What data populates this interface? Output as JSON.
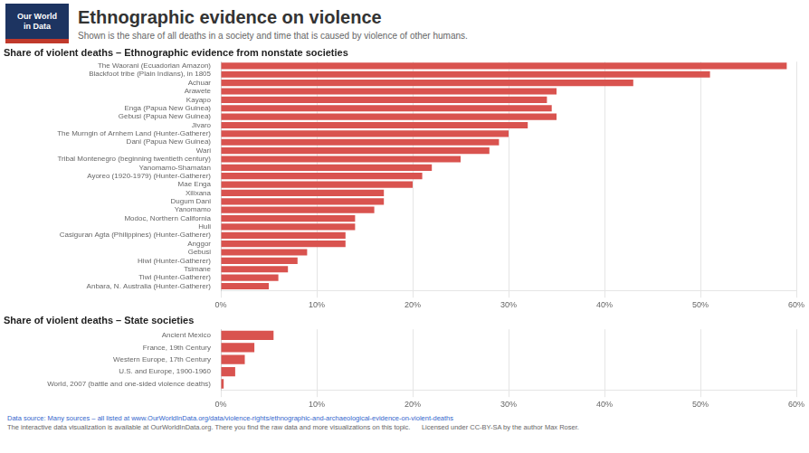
{
  "title": "Ethnographic evidence on violence",
  "subtitle": "Shown is the share of all deaths in a society and time that is caused by violence of other humans.",
  "annotations": [
    "Our World\nin Data",
    "Data source: Many sources – all listed at www.OurWorldInData.org/data/violence-rights/ethnographic-and-archaeological-evidence-on-violent-deaths",
    "The interactive data visualization is available at OurWorldInData.org. There you find the raw data and more visualizations on this topic.      Licensed under CC-BY-SA by the author Max Roser."
  ],
  "chart_data": [
    {
      "type": "bar",
      "orientation": "horizontal",
      "title": "Share of violent deaths – Ethnographic evidence from nonstate societies",
      "categories": [
        "The Waorani (Ecuadorian Amazon)",
        "Blackfoot tribe (Plain Indians), in 1805",
        "Achuar",
        "Arawete",
        "Kayapo",
        "Enga (Papua New Guinea)",
        "Gebusi (Papua New Guinea)",
        "Jivaro",
        "The Murngin of Arnhem Land (Hunter-Gatherer)",
        "Dani (Papua New Guinea)",
        "Wari",
        "Tribal Montenegro (beginning twentieth century)",
        "Yanomamo-Shamatan",
        "Ayoreo (1920-1979) (Hunter-Gatherer)",
        "Mae Enga",
        "Xilixana",
        "Dugum Dani",
        "Yanomamo",
        "Modoc, Northern California",
        "Huli",
        "Casiguran Agta (Philippines) (Hunter-Gatherer)",
        "Anggor",
        "Gebusi",
        "Hiwi (Hunter-Gatherer)",
        "Tsimane",
        "Tiwi (Hunter-Gatherer)",
        "Anbara, N. Australia (Hunter-Gatherer)"
      ],
      "values": [
        59,
        51,
        43,
        35,
        34,
        34.5,
        35,
        32,
        30,
        29,
        28,
        25,
        22,
        21,
        20,
        17,
        17,
        16,
        14,
        14,
        13,
        13,
        9,
        8,
        7,
        6,
        5
      ],
      "color": "#d9534f",
      "xlim": [
        0,
        60
      ],
      "xticks": [
        {
          "value": 0,
          "label": "0%"
        },
        {
          "value": 10,
          "label": "10%"
        },
        {
          "value": 20,
          "label": "20%"
        },
        {
          "value": 30,
          "label": "30%"
        },
        {
          "value": 40,
          "label": "40%"
        },
        {
          "value": 50,
          "label": "50%"
        },
        {
          "value": 60,
          "label": "60%"
        }
      ],
      "grid": true
    },
    {
      "type": "bar",
      "orientation": "horizontal",
      "title": "Share of violent deaths – State societies",
      "categories": [
        "Ancient Mexico",
        "France, 19th Century",
        "Western Europe, 17th Century",
        "U.S. and Europe, 1900-1960",
        "World, 2007 (battle and one-sided violence deaths)"
      ],
      "values": [
        5.5,
        3.5,
        2.5,
        1.5,
        0.3
      ],
      "color": "#d9534f",
      "xlim": [
        0,
        60
      ],
      "xticks": [
        {
          "value": 0,
          "label": "0%"
        },
        {
          "value": 10,
          "label": "10%"
        },
        {
          "value": 20,
          "label": "20%"
        },
        {
          "value": 30,
          "label": "30%"
        },
        {
          "value": 40,
          "label": "40%"
        },
        {
          "value": 50,
          "label": "50%"
        },
        {
          "value": 60,
          "label": "60%"
        }
      ],
      "grid": true
    }
  ]
}
